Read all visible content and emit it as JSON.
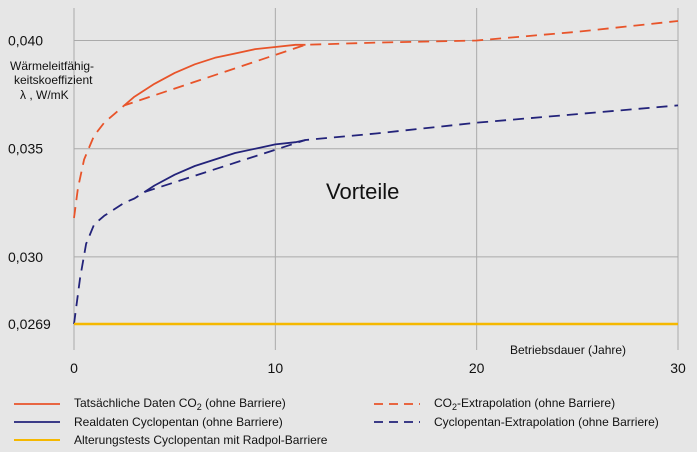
{
  "chart_data": {
    "type": "line",
    "ylabel_lines": [
      "Wärmeleitfähig-",
      "keitskoeffizient",
      "λ , W/mK"
    ],
    "xlabel": "Betriebsdauer (Jahre)",
    "annotation": "Vorteile",
    "xlim": [
      0,
      30
    ],
    "ylim": [
      0.0257,
      0.0415
    ],
    "xticks": [
      {
        "value": 0,
        "label": "0"
      },
      {
        "value": 10,
        "label": "10"
      },
      {
        "value": 20,
        "label": "20"
      },
      {
        "value": 30,
        "label": "30"
      }
    ],
    "yticks": [
      {
        "value": 0.0269,
        "label": "0,0269"
      },
      {
        "value": 0.03,
        "label": "0,030"
      },
      {
        "value": 0.035,
        "label": "0,035"
      },
      {
        "value": 0.04,
        "label": "0,040"
      }
    ],
    "grid": {
      "vertical": true,
      "horizontal": true
    },
    "series": [
      {
        "id": "co2_actual",
        "color": "#e8542a",
        "dash": "solid",
        "x": [
          2.5,
          3,
          4,
          5,
          6,
          7,
          8,
          9,
          10,
          11,
          11.5
        ],
        "y": [
          0.037,
          0.0374,
          0.038,
          0.0385,
          0.0389,
          0.0392,
          0.0394,
          0.0396,
          0.0397,
          0.0398,
          0.0398
        ]
      },
      {
        "id": "co2_extrapolation",
        "color": "#e8542a",
        "dash": "dashed",
        "x": [
          0,
          0.2,
          0.5,
          1,
          1.5,
          2,
          2.5,
          11.5,
          15,
          20,
          25,
          30
        ],
        "y": [
          0.0318,
          0.0332,
          0.0345,
          0.0356,
          0.0362,
          0.0366,
          0.037,
          0.0398,
          0.0399,
          0.04,
          0.0404,
          0.0409
        ]
      },
      {
        "id": "cyclopentan_actual",
        "color": "#23237a",
        "dash": "solid",
        "x": [
          3.5,
          4,
          5,
          6,
          7,
          8,
          9,
          10,
          11,
          11.5
        ],
        "y": [
          0.033,
          0.0333,
          0.0338,
          0.0342,
          0.0345,
          0.0348,
          0.035,
          0.0352,
          0.0353,
          0.0354
        ]
      },
      {
        "id": "cyclopentan_extrapolation",
        "color": "#23237a",
        "dash": "dashed",
        "x": [
          0,
          0.3,
          0.6,
          1,
          1.5,
          2,
          2.5,
          3,
          3.5,
          11.5,
          15,
          20,
          25,
          30
        ],
        "y": [
          0.0269,
          0.029,
          0.0306,
          0.0315,
          0.0319,
          0.0322,
          0.0325,
          0.0327,
          0.033,
          0.0354,
          0.0357,
          0.0362,
          0.0366,
          0.037
        ]
      },
      {
        "id": "radpol",
        "color": "#f5b800",
        "dash": "solid",
        "x": [
          0,
          30
        ],
        "y": [
          0.0269,
          0.0269
        ]
      }
    ],
    "legend": {
      "placement": "bottom",
      "entries": [
        {
          "series": "co2_actual",
          "text": "Tatsächliche Daten CO",
          "sub": "2",
          "text_after": " (ohne Barriere)"
        },
        {
          "series": "co2_extrapolation",
          "text": "CO",
          "sub": "2",
          "text_after": "-Extrapolation (ohne Barriere)"
        },
        {
          "series": "cyclopentan_actual",
          "text": "Realdaten Cyclopentan (ohne Barriere)",
          "sub": "",
          "text_after": ""
        },
        {
          "series": "cyclopentan_extrapolation",
          "text": "Cyclopentan-Extrapolation (ohne Barriere)",
          "sub": "",
          "text_after": ""
        },
        {
          "series": "radpol",
          "text": "Alterungstests Cyclopentan mit Radpol-Barriere",
          "sub": "",
          "text_after": ""
        }
      ]
    }
  }
}
